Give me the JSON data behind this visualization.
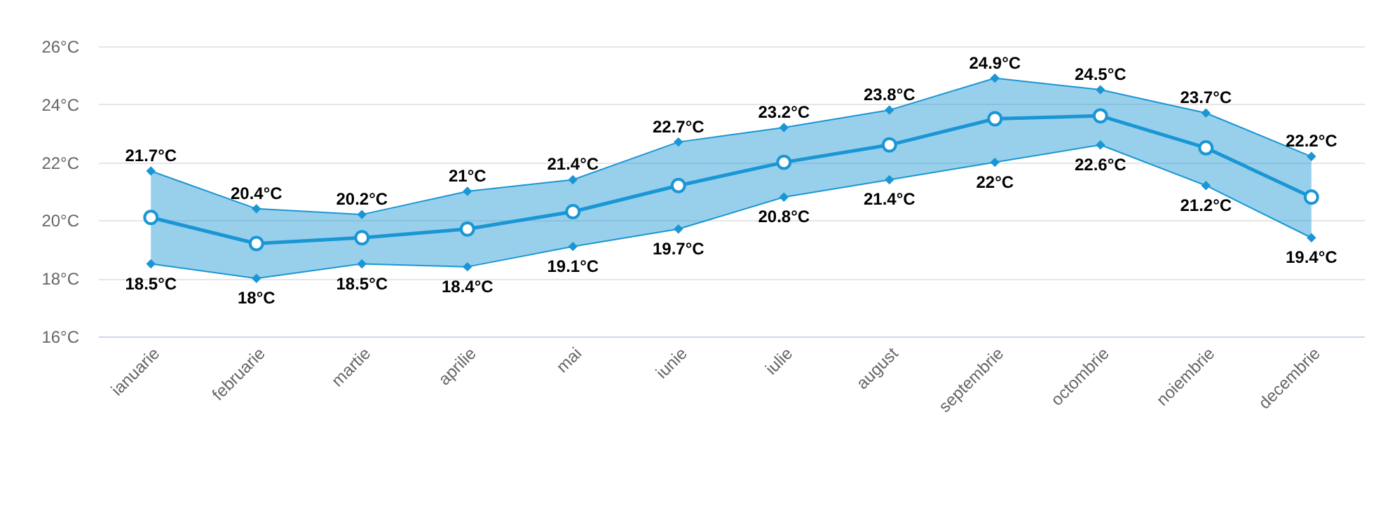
{
  "chart_data": {
    "type": "line",
    "categories": [
      "ianuarie",
      "februarie",
      "martie",
      "aprilie",
      "mai",
      "iunie",
      "iulie",
      "august",
      "septembrie",
      "octombrie",
      "noiembrie",
      "decembrie"
    ],
    "series": [
      {
        "color": "#1a96d4",
        "marker": "circle",
        "values": [
          20.1,
          19.2,
          19.4,
          19.7,
          20.3,
          21.2,
          22.0,
          22.6,
          23.5,
          23.6,
          22.5,
          20.8
        ],
        "lower": [
          18.5,
          18,
          18.5,
          18.4,
          19.1,
          19.7,
          20.8,
          21.4,
          22,
          22.6,
          21.2,
          19.4
        ],
        "upper": [
          21.7,
          20.4,
          20.2,
          21,
          21.4,
          22.7,
          23.2,
          23.8,
          24.9,
          24.5,
          23.7,
          22.2
        ]
      },
      {
        "color": "#1a96d4",
        "marker": "diamond",
        "values": [
          21.7,
          20.4,
          20.2,
          21,
          21.4,
          22.7,
          23.2,
          23.8,
          24.9,
          24.5,
          23.7,
          22.2
        ],
        "value_labels": [
          "21.7°C",
          "20.4°C",
          "20.2°C",
          "21°C",
          "21.4°C",
          "22.7°C",
          "23.2°C",
          "23.8°C",
          "24.9°C",
          "24.5°C",
          "23.7°C",
          "22.2°C"
        ]
      },
      {
        "color": "#1a96d4",
        "marker": "diamond",
        "values": [
          18.5,
          18,
          18.5,
          18.4,
          19.1,
          19.7,
          20.8,
          21.4,
          22,
          22.6,
          21.2,
          19.4
        ],
        "value_labels": [
          "18.5°C",
          "18°C",
          "18.5°C",
          "18.4°C",
          "19.1°C",
          "19.7°C",
          "20.8°C",
          "21.4°C",
          "22°C",
          "22.6°C",
          "21.2°C",
          "19.4°C"
        ]
      }
    ],
    "ylim": [
      16,
      26
    ],
    "yticks": [
      {
        "value": 16,
        "label": "16°C"
      },
      {
        "value": 18,
        "label": "18°C"
      },
      {
        "value": 20,
        "label": "20°C"
      },
      {
        "value": 22,
        "label": "22°C"
      },
      {
        "value": 24,
        "label": "24°C"
      },
      {
        "value": 26,
        "label": "26°C"
      }
    ],
    "grid": "y",
    "line_style": "solid"
  }
}
